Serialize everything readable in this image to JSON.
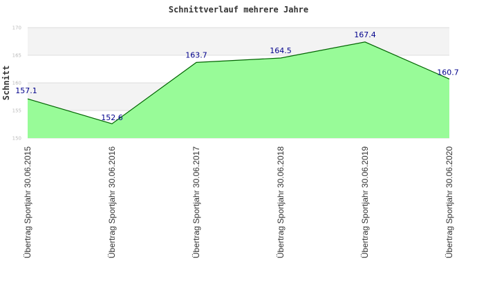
{
  "chart_data": {
    "type": "area",
    "title": "Schnittverlauf mehrere Jahre",
    "xlabel": "",
    "ylabel": "Schnitt",
    "categories": [
      "Übertrag Sportjahr 30.06.2015",
      "Übertrag Sportjahr 30.06.2016",
      "Übertrag Sportjahr 30.06.2017",
      "Übertrag Sportjahr 30.06.2018",
      "Übertrag Sportjahr 30.06.2019",
      "Übertrag Sportjahr 30.06.2020"
    ],
    "values": [
      157.1,
      152.6,
      163.7,
      164.5,
      167.4,
      160.7
    ],
    "data_labels": [
      "157.1",
      "152.6",
      "163.7",
      "164.5",
      "167.4",
      "160.7"
    ],
    "ylim": [
      150,
      170
    ],
    "yticks": [
      "150",
      "155",
      "160",
      "165",
      "170"
    ],
    "grid": true,
    "grid_style": "alternating horizontal bands",
    "legend": "none",
    "colors": {
      "area_fill": "#98fb98",
      "line": "#006400",
      "data_label": "#00008b",
      "band_light": "#f3f3f3",
      "band_white": "#ffffff",
      "grid_line": "#dddddd"
    }
  }
}
